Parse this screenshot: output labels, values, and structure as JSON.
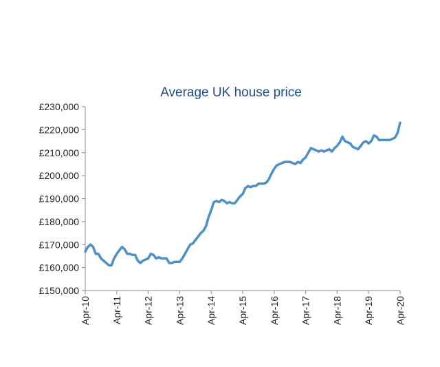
{
  "chart_data": {
    "type": "line",
    "title": "Average UK house price",
    "color": "#4a90cc",
    "categories": [
      "Apr-10",
      null,
      null,
      null,
      null,
      null,
      null,
      null,
      null,
      null,
      null,
      null,
      "Apr-11",
      null,
      null,
      null,
      null,
      null,
      null,
      null,
      null,
      null,
      null,
      null,
      "Apr-12",
      null,
      null,
      null,
      null,
      null,
      null,
      null,
      null,
      null,
      null,
      null,
      "Apr-13",
      null,
      null,
      null,
      null,
      null,
      null,
      null,
      null,
      null,
      null,
      null,
      "Apr-14",
      null,
      null,
      null,
      null,
      null,
      null,
      null,
      null,
      null,
      null,
      null,
      "Apr-15",
      null,
      null,
      null,
      null,
      null,
      null,
      null,
      null,
      null,
      null,
      null,
      "Apr-16",
      null,
      null,
      null,
      null,
      null,
      null,
      null,
      null,
      null,
      null,
      null,
      "Apr-17",
      null,
      null,
      null,
      null,
      null,
      null,
      null,
      null,
      null,
      null,
      null,
      "Apr-18",
      null,
      null,
      null,
      null,
      null,
      null,
      null,
      null,
      null,
      null,
      null,
      "Apr-19",
      null,
      null,
      null,
      null,
      null,
      null,
      null,
      null,
      null,
      null,
      null,
      "Apr-20"
    ],
    "values": [
      167000,
      169000,
      170000,
      169000,
      166000,
      166000,
      164000,
      163000,
      162000,
      161000,
      161000,
      164000,
      166000,
      167500,
      169000,
      168000,
      166000,
      166000,
      165500,
      165500,
      163000,
      162000,
      163000,
      163500,
      164000,
      166000,
      165500,
      164000,
      164500,
      164000,
      164000,
      164000,
      162000,
      162000,
      162500,
      162500,
      162500,
      164000,
      166000,
      168000,
      170000,
      170500,
      172000,
      173500,
      175000,
      176000,
      178000,
      182000,
      185000,
      188500,
      189000,
      188500,
      189500,
      189000,
      188000,
      188500,
      188000,
      188000,
      189500,
      191000,
      192000,
      194500,
      195500,
      195000,
      195500,
      195500,
      196500,
      196500,
      196500,
      197000,
      198500,
      201000,
      203000,
      204500,
      205000,
      205500,
      206000,
      206000,
      206000,
      205500,
      205000,
      206000,
      205500,
      207000,
      208000,
      210000,
      212000,
      211500,
      211000,
      210500,
      211000,
      210500,
      211000,
      211500,
      210500,
      212000,
      213000,
      214500,
      217000,
      215000,
      214500,
      214000,
      212500,
      212000,
      211500,
      213000,
      214500,
      215000,
      214000,
      215000,
      217500,
      217000,
      215500,
      215500,
      215500,
      215500,
      215500,
      216000,
      216500,
      218500,
      223000
    ],
    "ylim": [
      150000,
      230000
    ],
    "yticks": [
      {
        "value": 150000,
        "label": "£150,000"
      },
      {
        "value": 160000,
        "label": "£160,000"
      },
      {
        "value": 170000,
        "label": "£170,000"
      },
      {
        "value": 180000,
        "label": "£180,000"
      },
      {
        "value": 190000,
        "label": "£190,000"
      },
      {
        "value": 200000,
        "label": "£200,000"
      },
      {
        "value": 210000,
        "label": "£210,000"
      },
      {
        "value": 220000,
        "label": "£220,000"
      },
      {
        "value": 230000,
        "label": "£230,000"
      }
    ],
    "grid": false
  }
}
